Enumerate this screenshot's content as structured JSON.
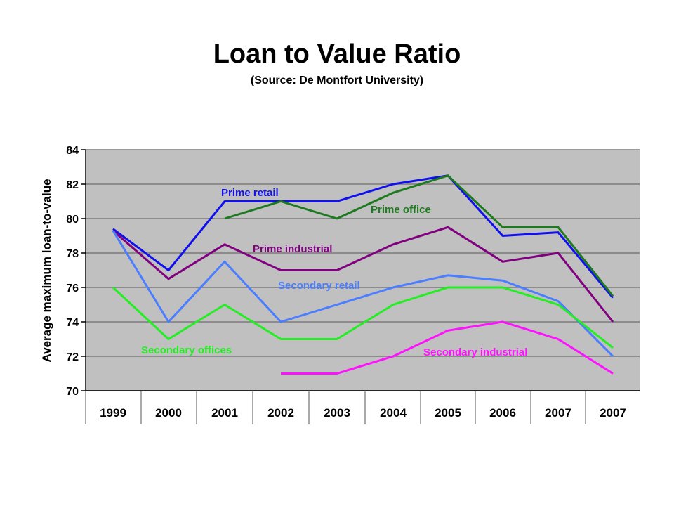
{
  "header": {
    "title": "Loan to Value Ratio",
    "subtitle": "(Source: De Montfort University)"
  },
  "chart_data": {
    "type": "line",
    "ylabel": "Average maximum loan-to-value",
    "xlabel": "",
    "categories": [
      "1999",
      "2000",
      "2001",
      "2002",
      "2003",
      "2004",
      "2005",
      "2006",
      "2007",
      "2007"
    ],
    "ylim": [
      70,
      84
    ],
    "yticks": [
      70,
      72,
      74,
      76,
      78,
      80,
      82,
      84
    ],
    "grid": true,
    "plot_background": "#c0c0c0",
    "series": [
      {
        "name": "Prime retail",
        "color": "#1010ee",
        "values": [
          79.4,
          77.0,
          81.0,
          81.0,
          81.0,
          82.0,
          82.5,
          79.0,
          79.2,
          75.4
        ]
      },
      {
        "name": "Prime office",
        "color": "#1e7a1e",
        "values": [
          null,
          null,
          80.0,
          81.0,
          80.0,
          81.5,
          82.5,
          79.5,
          79.5,
          75.5
        ]
      },
      {
        "name": "Prime industrial",
        "color": "#800080",
        "values": [
          79.3,
          76.5,
          78.5,
          77.0,
          77.0,
          78.5,
          79.5,
          77.5,
          78.0,
          74.0
        ]
      },
      {
        "name": "Secondary retail",
        "color": "#4a7dff",
        "values": [
          79.3,
          74.0,
          77.5,
          74.0,
          75.0,
          76.0,
          76.7,
          76.4,
          75.2,
          72.0
        ]
      },
      {
        "name": "Secondary offices",
        "color": "#22ee22",
        "values": [
          76.0,
          73.0,
          75.0,
          73.0,
          73.0,
          75.0,
          76.0,
          76.0,
          75.0,
          72.5
        ]
      },
      {
        "name": "Secondary industrial",
        "color": "#ff10ff",
        "values": [
          null,
          null,
          null,
          71.0,
          71.0,
          72.0,
          73.5,
          74.0,
          73.0,
          71.0
        ]
      }
    ]
  }
}
